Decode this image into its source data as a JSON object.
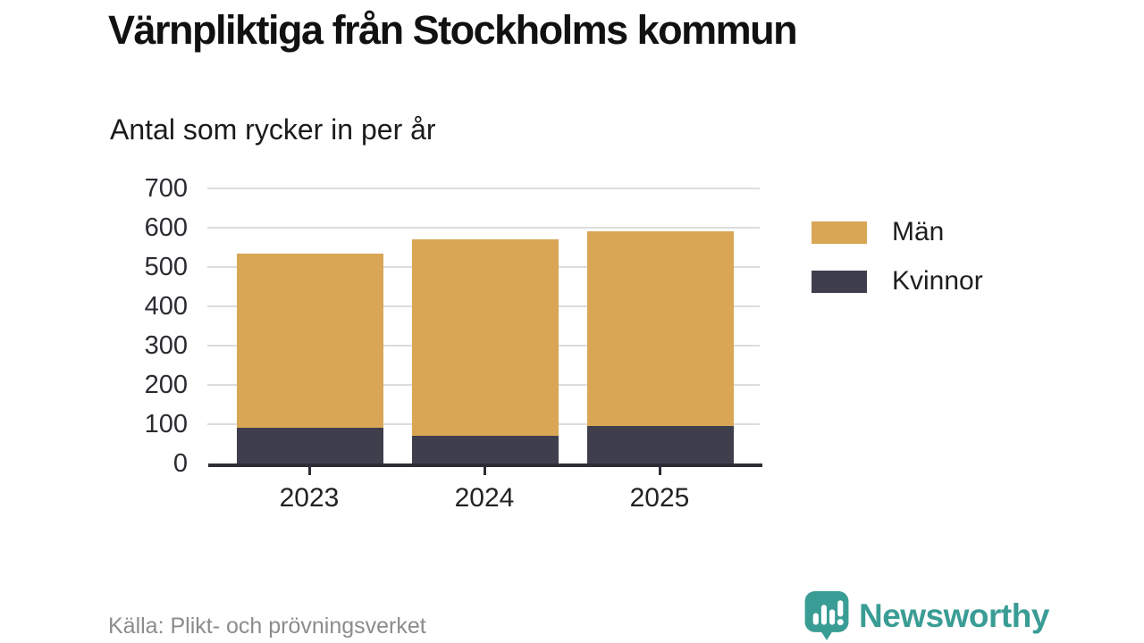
{
  "header": {
    "title": "Värnpliktiga från Stockholms kommun",
    "subtitle": "Antal som rycker in per år"
  },
  "chart_data": {
    "type": "bar",
    "stacked": true,
    "title": "Värnpliktiga från Stockholms kommun",
    "subtitle": "Antal som rycker in per år",
    "categories": [
      "2023",
      "2024",
      "2025"
    ],
    "series": [
      {
        "name": "Kvinnor",
        "color": "#3F3E4C",
        "values": [
          90,
          70,
          95
        ]
      },
      {
        "name": "Män",
        "color": "#D8A655",
        "values": [
          445,
          500,
          495
        ]
      }
    ],
    "stack_order": "bottom-to-top",
    "totals": [
      535,
      570,
      590
    ],
    "ylim": [
      0,
      700
    ],
    "yticks": [
      0,
      100,
      200,
      300,
      400,
      500,
      600,
      700
    ],
    "xlabel": "",
    "ylabel": "",
    "grid": "horizontal",
    "legend_position": "right"
  },
  "legend": {
    "items": [
      {
        "label": "Män",
        "color": "#D8A655"
      },
      {
        "label": "Kvinnor",
        "color": "#3F3E4C"
      }
    ]
  },
  "footer": {
    "source": "Källa: Plikt- och prövningsverket",
    "brand": "Newsworthy"
  },
  "colors": {
    "background": "#FFFFFF",
    "men": "#D8A655",
    "women": "#3F3E4C",
    "axis": "#2D2D37",
    "gridline": "#DCDCDC",
    "text": "#1A1A1A",
    "muted_text": "#8C8C8C",
    "brand_teal": "#3A9D95"
  }
}
